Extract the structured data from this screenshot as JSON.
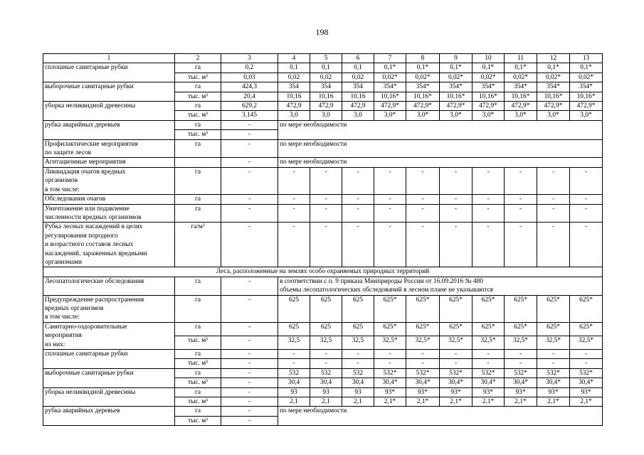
{
  "page_number": "198",
  "header": [
    "1",
    "2",
    "3",
    "4",
    "5",
    "6",
    "7",
    "8",
    "9",
    "10",
    "11",
    "12",
    "13"
  ],
  "blocks": [
    {
      "label": "сплошные санитарные рубки",
      "units": [
        "га",
        "тыс. м³"
      ],
      "rows": [
        [
          "0,2",
          "0,1",
          "0,1",
          "0,1",
          "0,1*",
          "0,1*",
          "0,1*",
          "0,1*",
          "0,1*",
          "0,1*",
          "0,1*"
        ],
        [
          "0,03",
          "0,02",
          "0,02",
          "0,02",
          "0,02*",
          "0,02*",
          "0,02*",
          "0,02*",
          "0,02*",
          "0,02*",
          "0,02*"
        ]
      ]
    },
    {
      "label": "выборочные санитарные рубки",
      "units": [
        "га",
        "тыс. м³"
      ],
      "rows": [
        [
          "424,3",
          "354",
          "354",
          "354",
          "354*",
          "354*",
          "354*",
          "354*",
          "354*",
          "354*",
          "354*"
        ],
        [
          "20,4",
          "10,16",
          "10,16",
          "10,16",
          "10,16*",
          "10,16*",
          "10,16*",
          "10,16*",
          "10,16*",
          "10,16*",
          "10,16*"
        ]
      ]
    },
    {
      "label": "уборка неликвидной древесины",
      "units": [
        "га",
        "тыс. м³"
      ],
      "rows": [
        [
          "629,2",
          "472,9",
          "472,9",
          "472,9",
          "472,9*",
          "472,9*",
          "472,9*",
          "472,9*",
          "472,9*",
          "472,9*",
          "472,9*"
        ],
        [
          "3,145",
          "3,0",
          "3,0",
          "3,0",
          "3,0*",
          "3,0*",
          "3,0*",
          "3,0*",
          "3,0*",
          "3,0*",
          "3,0*"
        ]
      ]
    },
    {
      "label": "рубка аварийных деревьев",
      "units": [
        "га",
        "тыс. м³"
      ],
      "col3": [
        "-",
        "-"
      ],
      "note": "по мере необходимости"
    },
    {
      "label": "Профилактические мероприятия\nпо защите лесов",
      "units": [
        "га"
      ],
      "col3": [
        "-"
      ],
      "note": "по мере необходимости"
    },
    {
      "label": "Агитационные мероприятия",
      "units": [
        ""
      ],
      "col3": [
        "-"
      ],
      "note": "по мере необходимости"
    },
    {
      "label": "Ликвидация очагов вредных\nорганизмов\nв том числе:",
      "units": [
        "га"
      ],
      "rows": [
        [
          "-",
          "-",
          "-",
          "-",
          "-",
          "-",
          "-",
          "-",
          "-",
          "-",
          "-"
        ]
      ]
    },
    {
      "label": "Обследования очагов",
      "units": [
        "га"
      ],
      "rows": [
        [
          "-",
          "-",
          "-",
          "-",
          "-",
          "-",
          "-",
          "-",
          "-",
          "-",
          "-"
        ]
      ]
    },
    {
      "label": "Уничтожение или подавление\nчисленности вредных организмов",
      "units": [
        "га"
      ],
      "rows": [
        [
          "-",
          "-",
          "-",
          "-",
          "-",
          "-",
          "-",
          "-",
          "-",
          "-",
          "-"
        ]
      ]
    },
    {
      "label": "Рубка лесных насаждений в целях\nрегулирования породного\nи возрастного составов лесных\nнасаждений, зараженных вредными\nорганизмами",
      "units": [
        "га/м³"
      ],
      "rows": [
        [
          "-",
          "-",
          "-",
          "-",
          "-",
          "-",
          "-",
          "-",
          "-",
          "-",
          "-"
        ]
      ]
    },
    {
      "section": "Леса, расположенные на землях особо охраняемых природных территорий"
    },
    {
      "label": "Лесопатологические обследования",
      "units": [
        "га"
      ],
      "col3": [
        "-"
      ],
      "note": "в соответствии с п. 9 приказа Минприроды России от 16.09.2016 № 480\nобъемы лесопатологических обследований в лесном плане не указываются"
    },
    {
      "label": "Предупреждение распространения\nвредных организмов\nв том числе:",
      "units": [
        "га"
      ],
      "rows": [
        [
          "-",
          "625",
          "625",
          "625",
          "625*",
          "625*",
          "625*",
          "625*",
          "625*",
          "625*",
          "625*"
        ]
      ]
    },
    {
      "label": "Санитарно-оздоровительные\nмероприятия\nиз них:",
      "units": [
        "га",
        "тыс. м³"
      ],
      "rows": [
        [
          "-",
          "625",
          "625",
          "625",
          "625*",
          "625*",
          "625*",
          "625*",
          "625*",
          "625*",
          "625*"
        ],
        [
          "-",
          "32,5",
          "32,5",
          "32,5",
          "32,5*",
          "32,5*",
          "32,5*",
          "32,5*",
          "32,5*",
          "32,5*",
          "32,5*"
        ]
      ]
    },
    {
      "label": "сплошные санитарные рубки",
      "units": [
        "га",
        "тыс. м³"
      ],
      "rows": [
        [
          "-",
          "-",
          "-",
          "-",
          "-",
          "-",
          "-",
          "-",
          "-",
          "-",
          "-"
        ],
        [
          "-",
          "-",
          "-",
          "-",
          "-",
          "-",
          "-",
          "-",
          "-",
          "-",
          "-"
        ]
      ]
    },
    {
      "label": "выборочные санитарные рубки",
      "units": [
        "га",
        "тыс. м³"
      ],
      "rows": [
        [
          "-",
          "532",
          "532",
          "532",
          "532*",
          "532*",
          "532*",
          "532*",
          "532*",
          "532*",
          "532*"
        ],
        [
          "-",
          "30,4",
          "30,4",
          "30,4",
          "30,4*",
          "30,4*",
          "30,4*",
          "30,4*",
          "30,4*",
          "30,4*",
          "30,4*"
        ]
      ]
    },
    {
      "label": "уборка неликвидной древесины",
      "units": [
        "га",
        "тыс. м³"
      ],
      "rows": [
        [
          "-",
          "93",
          "93",
          "93",
          "93*",
          "93*",
          "93*",
          "93*",
          "93*",
          "93*",
          "93*"
        ],
        [
          "-",
          "2,1",
          "2,1",
          "2,1",
          "2,1*",
          "2,1*",
          "2,1*",
          "2,1*",
          "2,1*",
          "2,1*",
          "2,1*"
        ]
      ]
    },
    {
      "label": "рубка аварийных деревьев",
      "units": [
        "га",
        "тыс. м³"
      ],
      "col3": [
        "-",
        "-"
      ],
      "note": "по мере необходимости"
    }
  ]
}
